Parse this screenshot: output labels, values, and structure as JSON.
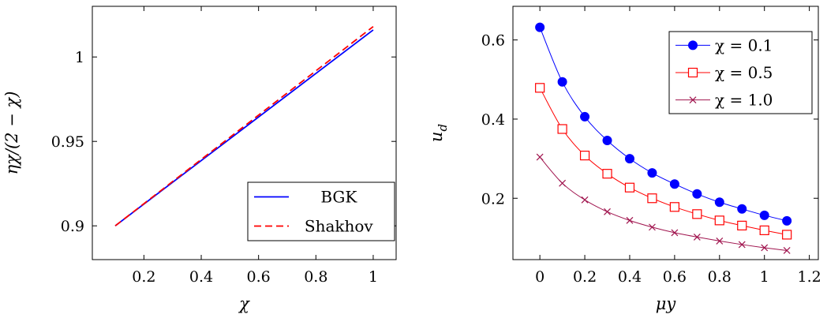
{
  "chart_data": [
    {
      "type": "line",
      "xlabel": "χ",
      "ylabel": "ηχ/(2 − χ)",
      "xlim": [
        0.02,
        1.08
      ],
      "ylim": [
        0.88,
        1.03
      ],
      "xticks": [
        0.2,
        0.4,
        0.6,
        0.8,
        1
      ],
      "xtick_labels": [
        "0.2",
        "0.4",
        "0.6",
        "0.8",
        "1"
      ],
      "yticks": [
        0.9,
        0.95,
        1
      ],
      "ytick_labels": [
        "0.9",
        "0.95",
        "1"
      ],
      "grid": false,
      "legend_position": "bottom-right",
      "series": [
        {
          "name": "BGK",
          "color": "#0000ff",
          "dash": "solid",
          "x": [
            0.1,
            1.0
          ],
          "y": [
            0.9,
            1.016
          ]
        },
        {
          "name": "Shakhov",
          "color": "#ff0000",
          "dash": "dashed",
          "x": [
            0.1,
            1.0
          ],
          "y": [
            0.9,
            1.018
          ]
        }
      ]
    },
    {
      "type": "line",
      "xlabel": "μy",
      "ylabel": "u_d",
      "xlim": [
        -0.12,
        1.24
      ],
      "ylim": [
        0.045,
        0.685
      ],
      "xticks": [
        0,
        0.2,
        0.4,
        0.6,
        0.8,
        1,
        1.2
      ],
      "xtick_labels": [
        "0",
        "0.2",
        "0.4",
        "0.6",
        "0.8",
        "1",
        "1.2"
      ],
      "yticks": [
        0.2,
        0.4,
        0.6
      ],
      "ytick_labels": [
        "0.2",
        "0.4",
        "0.6"
      ],
      "grid": false,
      "legend_position": "top-right",
      "series": [
        {
          "name": "χ = 0.1",
          "color": "#0000ff",
          "marker": "filled-circle",
          "x": [
            0,
            0.1,
            0.2,
            0.3,
            0.4,
            0.5,
            0.6,
            0.7,
            0.8,
            0.9,
            1.0,
            1.1
          ],
          "y": [
            0.632,
            0.494,
            0.406,
            0.346,
            0.3,
            0.264,
            0.236,
            0.211,
            0.19,
            0.173,
            0.157,
            0.143
          ]
        },
        {
          "name": "χ = 0.5",
          "color": "#ff0000",
          "marker": "open-square",
          "x": [
            0,
            0.1,
            0.2,
            0.3,
            0.4,
            0.5,
            0.6,
            0.7,
            0.8,
            0.9,
            1.0,
            1.1
          ],
          "y": [
            0.479,
            0.375,
            0.308,
            0.262,
            0.227,
            0.2,
            0.178,
            0.16,
            0.144,
            0.131,
            0.119,
            0.108
          ]
        },
        {
          "name": "χ = 1.0",
          "color": "#a0144e",
          "marker": "cross",
          "x": [
            0,
            0.1,
            0.2,
            0.3,
            0.4,
            0.5,
            0.6,
            0.7,
            0.8,
            0.9,
            1.0,
            1.1
          ],
          "y": [
            0.304,
            0.238,
            0.196,
            0.166,
            0.144,
            0.127,
            0.113,
            0.102,
            0.092,
            0.083,
            0.075,
            0.068
          ]
        }
      ]
    }
  ]
}
